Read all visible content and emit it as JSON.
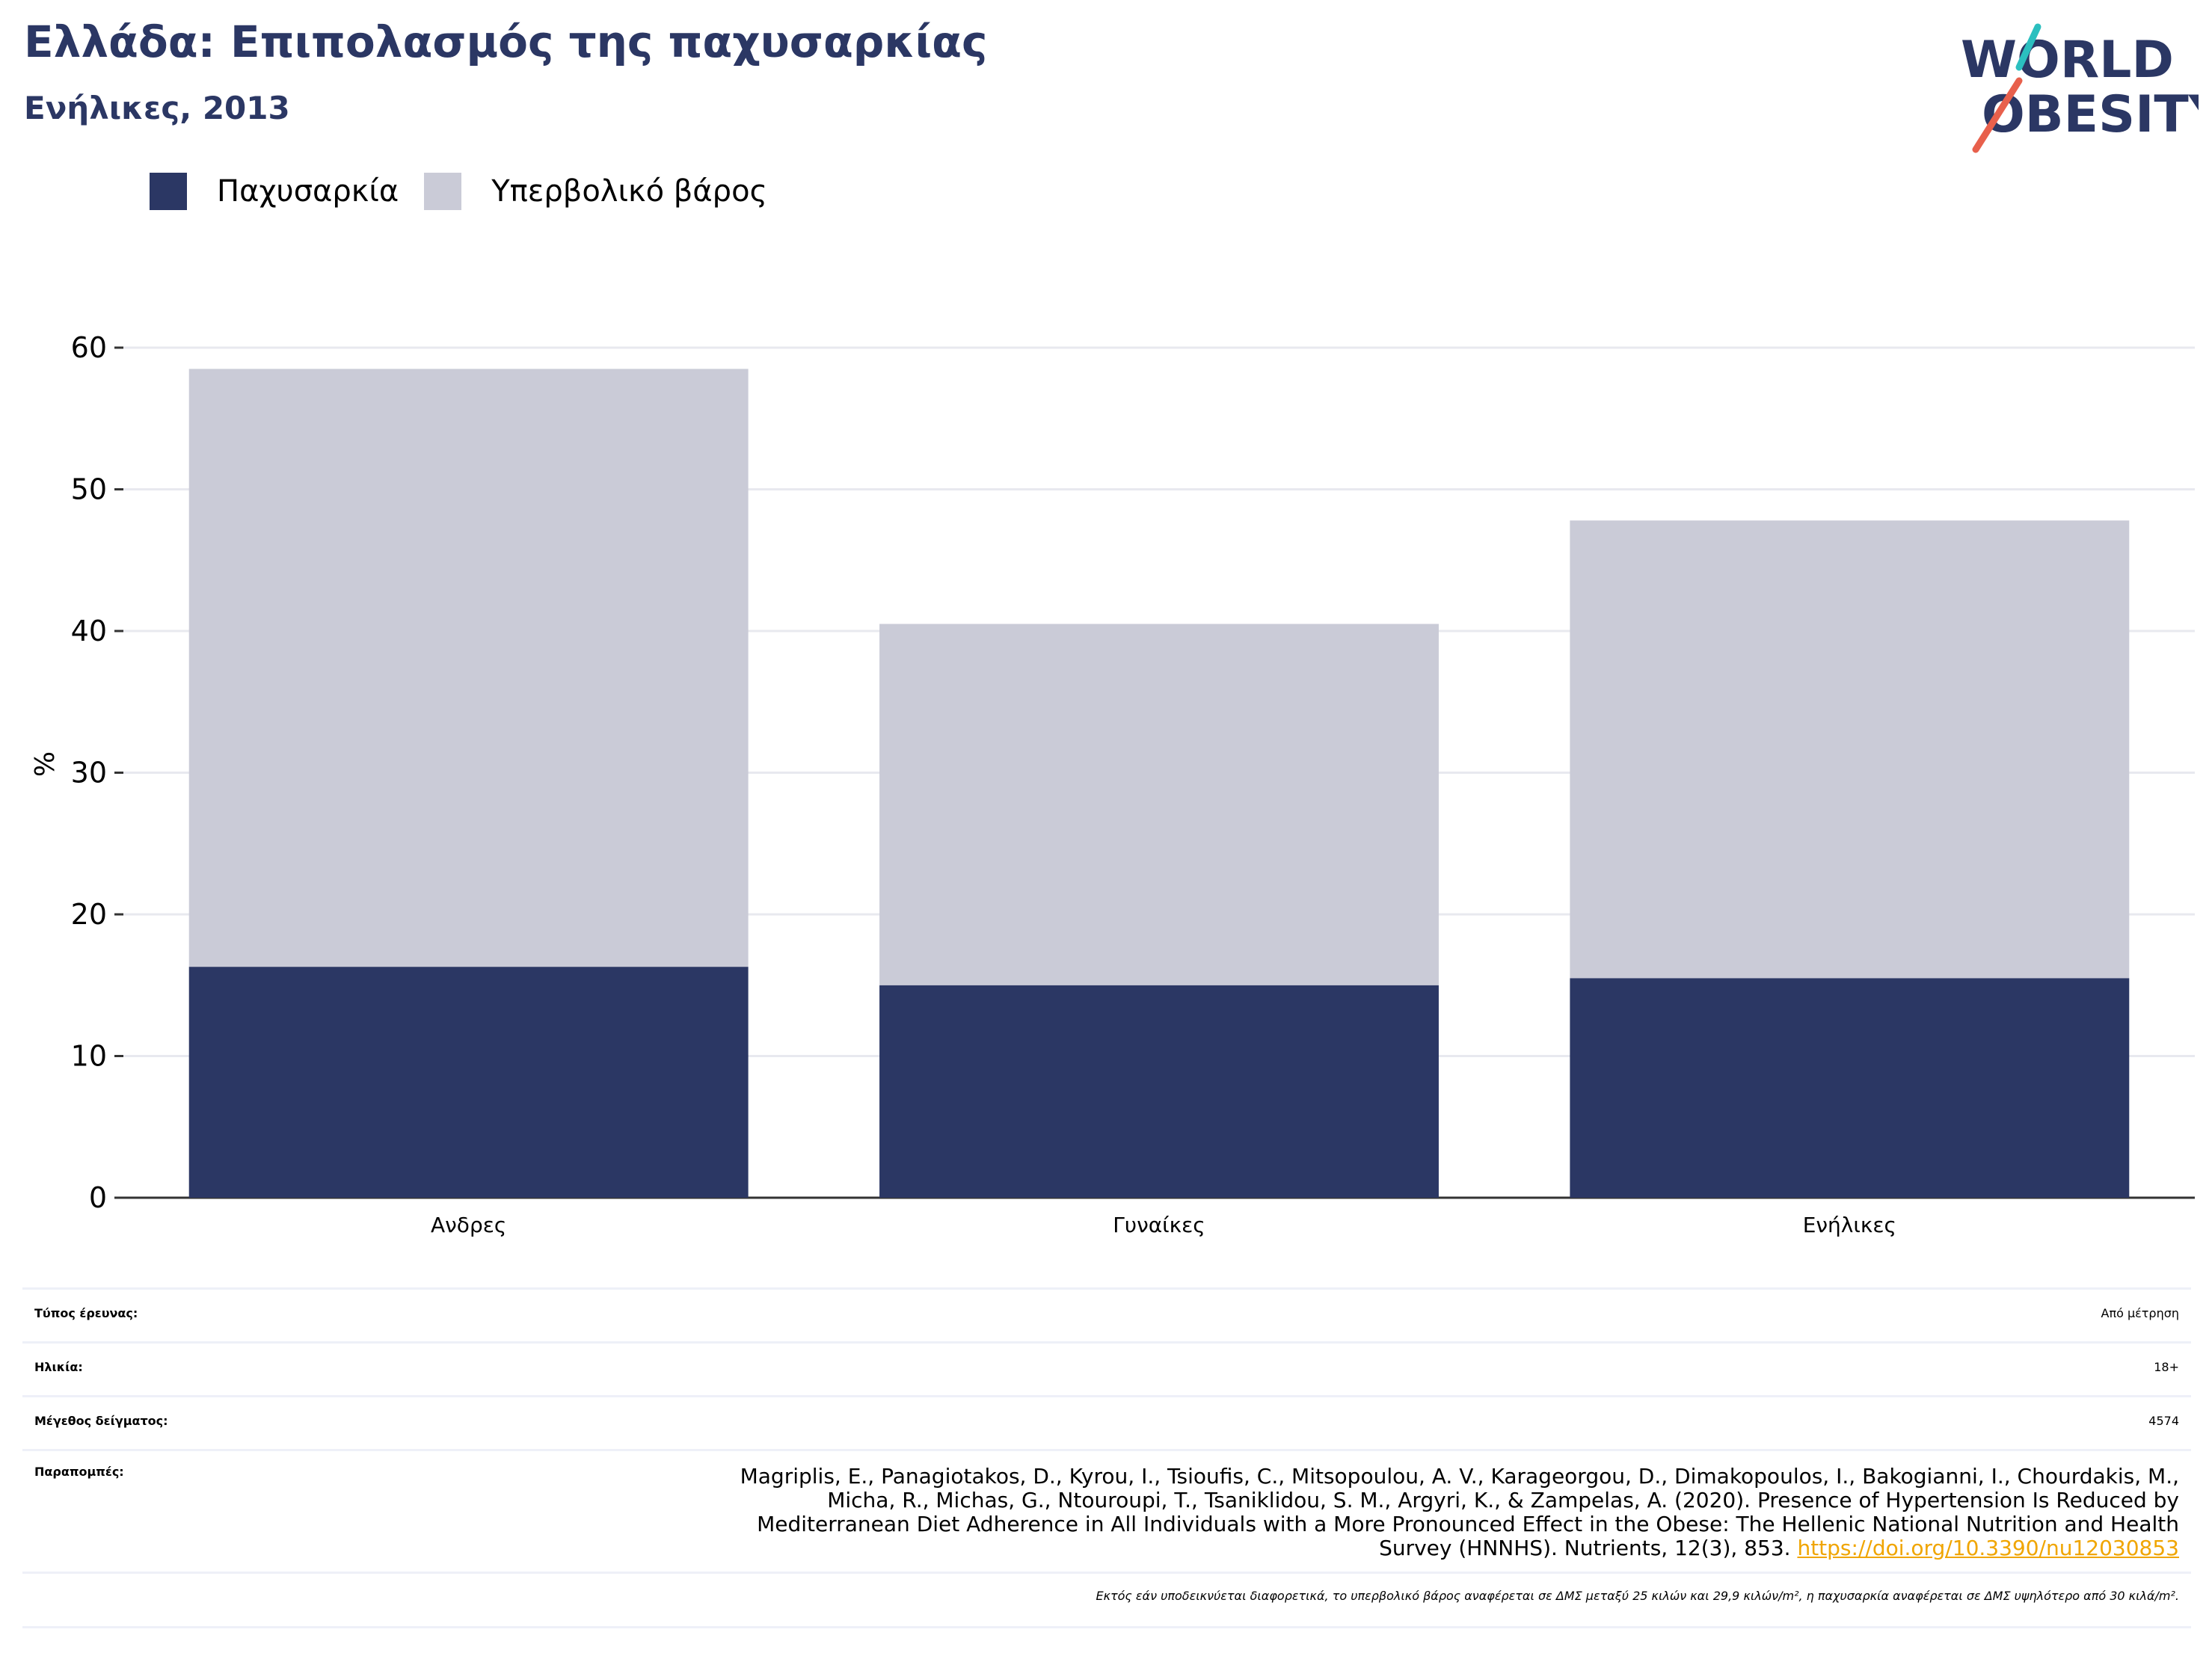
{
  "header": {
    "title": "Ελλάδα: Επιπολασμός της παχυσαρκίας",
    "subtitle": "Ενήλικες, 2013"
  },
  "logo": {
    "line1": "WORLD",
    "line2": "OBESITY"
  },
  "colors": {
    "obesity": "#2b3764",
    "overweight": "#cacbd7",
    "accent_teal": "#2bbfbf",
    "accent_red": "#e8604c",
    "link": "#f0a500"
  },
  "chart_data": {
    "type": "bar",
    "stacked": true,
    "categories": [
      "Ανδρες",
      "Γυναίκες",
      "Ενήλικες"
    ],
    "series": [
      {
        "name": "Παχυσαρκία",
        "values": [
          16.3,
          15.0,
          15.5
        ]
      },
      {
        "name": "Υπερβολικό βάρος",
        "values": [
          42.2,
          25.5,
          32.3
        ]
      }
    ],
    "ylabel": "%",
    "xlabel": "",
    "ylim": [
      0,
      60
    ],
    "yticks": [
      0,
      10,
      20,
      30,
      40,
      50,
      60
    ],
    "grid": true,
    "legend": "top-left"
  },
  "meta": {
    "survey_type_label": "Τύπος έρευνας:",
    "survey_type_value": "Από μέτρηση",
    "age_label": "Ηλικία:",
    "age_value": "18+",
    "sample_label": "Μέγεθος δείγματος:",
    "sample_value": "4574",
    "refs_label": "Παραπομπές:",
    "refs_line1": "Magriplis, E., Panagiotakos, D., Kyrou, I., Tsioufis, C., Mitsopoulou, A. V., Karageorgou, D., Dimakopoulos, I., Bakogianni, I., Chourdakis, M.,",
    "refs_line2": "Micha, R., Michas, G., Ntouroupi, T., Tsaniklidou, S. M., Argyri, K., & Zampelas, A. (2020). Presence of Hypertension Is Reduced by",
    "refs_line3": "Mediterranean Diet Adherence in All Individuals with a More Pronounced Effect in the Obese: The Hellenic National Nutrition and Health",
    "refs_line4": "Survey (HNNHS). Nutrients, 12(3), 853.",
    "refs_link": "https://doi.org/10.3390/nu12030853",
    "footnote": "Εκτός εάν υποδεικνύεται διαφορετικά, το υπερβολικό βάρος αναφέρεται σε ΔΜΣ μεταξύ 25 κιλών και 29,9 κιλών/m², η παχυσαρκία αναφέρεται σε ΔΜΣ υψηλότερο από 30 κιλά/m²."
  }
}
